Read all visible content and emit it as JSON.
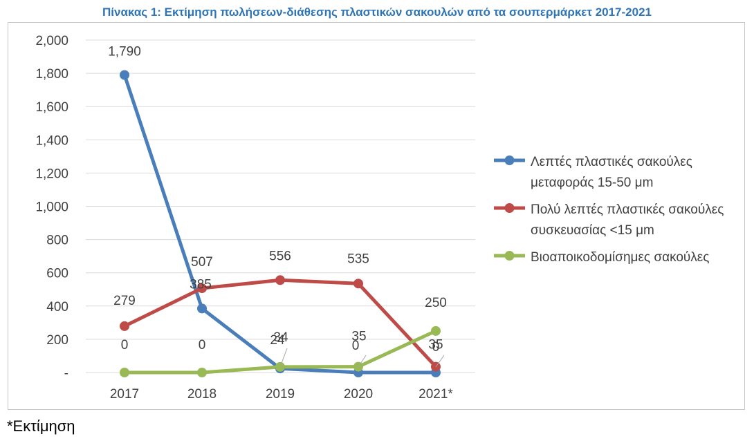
{
  "colors": {
    "title": "#2e75b6",
    "series": [
      "#4a7ebb",
      "#be4b48",
      "#98b954"
    ],
    "grid": "#d9d9d9",
    "frame": "#c8c8c8"
  },
  "title": "Πίνακας 1: Εκτίμηση πωλήσεων-διάθεσης πλαστικών σακουλών από τα σουπερμάρκετ 2017-2021",
  "footnote": "*Εκτίμηση",
  "chart_data": {
    "type": "line",
    "categories": [
      "2017",
      "2018",
      "2019",
      "2020",
      "2021*"
    ],
    "y_tick_labels": [
      "-",
      "200",
      "400",
      "600",
      "800",
      "1,000",
      "1,200",
      "1,400",
      "1,600",
      "1,800",
      "2,000"
    ],
    "ylim": [
      0,
      2000
    ],
    "ystep": 200,
    "grid": true,
    "legend_position": "right",
    "series": [
      {
        "name": "Λεπτές πλαστικές σακούλες μεταφοράς 15-50 μm",
        "legend_lines": [
          "Λεπτές πλαστικές σακούλες",
          "μεταφοράς 15-50 μm"
        ],
        "values": [
          1790,
          385,
          24,
          0,
          0
        ],
        "labels": [
          "1,790",
          "385",
          "24",
          "0",
          "0"
        ]
      },
      {
        "name": "Πολύ λεπτές πλαστικές σακούλες συσκευασίας <15 μm",
        "legend_lines": [
          "Πολύ λεπτές πλαστικές σακούλες",
          "συσκευασίας <15 μm"
        ],
        "values": [
          279,
          507,
          556,
          535,
          35
        ],
        "labels": [
          "279",
          "507",
          "556",
          "535",
          "35"
        ]
      },
      {
        "name": "Βιοαποικοδομίσημες σακούλες",
        "legend_lines": [
          "Βιοαποικοδομίσημες σακούλες"
        ],
        "values": [
          0,
          0,
          34,
          35,
          250
        ],
        "labels": [
          "0",
          "0",
          "34",
          "35",
          "250"
        ]
      }
    ]
  }
}
